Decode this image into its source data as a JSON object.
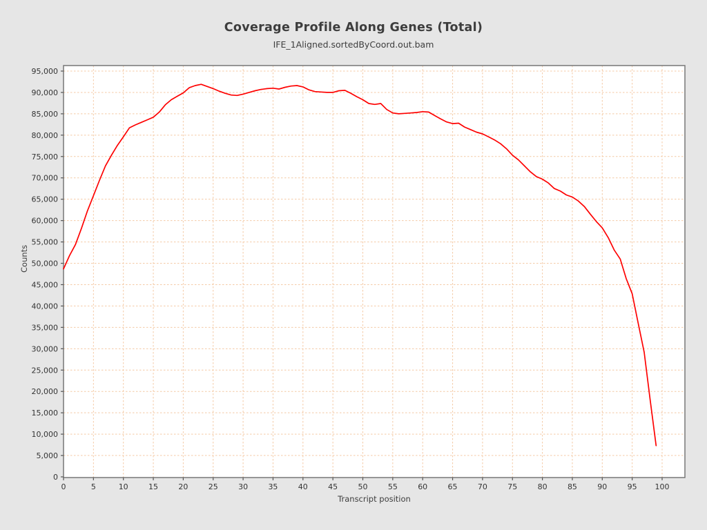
{
  "window": {
    "background": "#e6e6e6"
  },
  "chart_data": {
    "type": "line",
    "title": "Coverage Profile Along Genes (Total)",
    "subtitle": "IFE_1Aligned.sortedByCoord.out.bam",
    "xlabel": "Transcript position",
    "ylabel": "Counts",
    "xlim": [
      0,
      103.8
    ],
    "ylim": [
      0,
      96300
    ],
    "x_ticks": [
      0,
      5,
      10,
      15,
      20,
      25,
      30,
      35,
      40,
      45,
      50,
      55,
      60,
      65,
      70,
      75,
      80,
      85,
      90,
      95,
      100
    ],
    "y_ticks": [
      0,
      5000,
      10000,
      15000,
      20000,
      25000,
      30000,
      35000,
      40000,
      45000,
      50000,
      55000,
      60000,
      65000,
      70000,
      75000,
      80000,
      85000,
      90000,
      95000
    ],
    "grid": true,
    "legend": "none",
    "plot_bg": "#ffffff",
    "grid_color": "#f4c9a4",
    "frame_color": "#777777",
    "tick_color": "#555555",
    "line_color": "#fe0000",
    "series": [
      {
        "name": "IFE_1Aligned.sortedByCoord.out.bam",
        "x": [
          0,
          1,
          2,
          3,
          4,
          5,
          6,
          7,
          8,
          9,
          10,
          11,
          12,
          13,
          14,
          15,
          16,
          17,
          18,
          19,
          20,
          21,
          22,
          23,
          24,
          25,
          26,
          27,
          28,
          29,
          30,
          31,
          32,
          33,
          34,
          35,
          36,
          37,
          38,
          39,
          40,
          41,
          42,
          43,
          44,
          45,
          46,
          47,
          48,
          49,
          50,
          51,
          52,
          53,
          54,
          55,
          56,
          57,
          58,
          59,
          60,
          61,
          62,
          63,
          64,
          65,
          66,
          67,
          68,
          69,
          70,
          71,
          72,
          73,
          74,
          75,
          76,
          77,
          78,
          79,
          80,
          81,
          82,
          83,
          84,
          85,
          86,
          87,
          88,
          89,
          90,
          91,
          92,
          93,
          94,
          95,
          96,
          97,
          98,
          99
        ],
        "values": [
          48700,
          51800,
          54400,
          58200,
          62300,
          65800,
          69400,
          72800,
          75300,
          77600,
          79600,
          81700,
          82400,
          83000,
          83600,
          84200,
          85400,
          87100,
          88300,
          89100,
          89900,
          91100,
          91600,
          91900,
          91400,
          90900,
          90300,
          89800,
          89400,
          89300,
          89600,
          90000,
          90400,
          90700,
          90900,
          91000,
          90800,
          91200,
          91500,
          91600,
          91300,
          90600,
          90200,
          90100,
          90000,
          90000,
          90400,
          90500,
          89800,
          89000,
          88300,
          87400,
          87200,
          87400,
          86000,
          85200,
          85000,
          85100,
          85200,
          85300,
          85500,
          85400,
          84600,
          83800,
          83100,
          82700,
          82800,
          81900,
          81300,
          80700,
          80300,
          79600,
          78900,
          78000,
          76800,
          75300,
          74200,
          72800,
          71400,
          70300,
          69700,
          68800,
          67500,
          66900,
          66000,
          65500,
          64600,
          63300,
          61500,
          59800,
          58300,
          56000,
          53100,
          51000,
          46400,
          42900,
          36000,
          29200,
          18000,
          7300
        ]
      }
    ]
  },
  "plot_geometry_note": "plot area 92,95 to 992,692; x tick 0 at px92, x tick 100 at px959; y 0 at py691, y 95000 at py103"
}
